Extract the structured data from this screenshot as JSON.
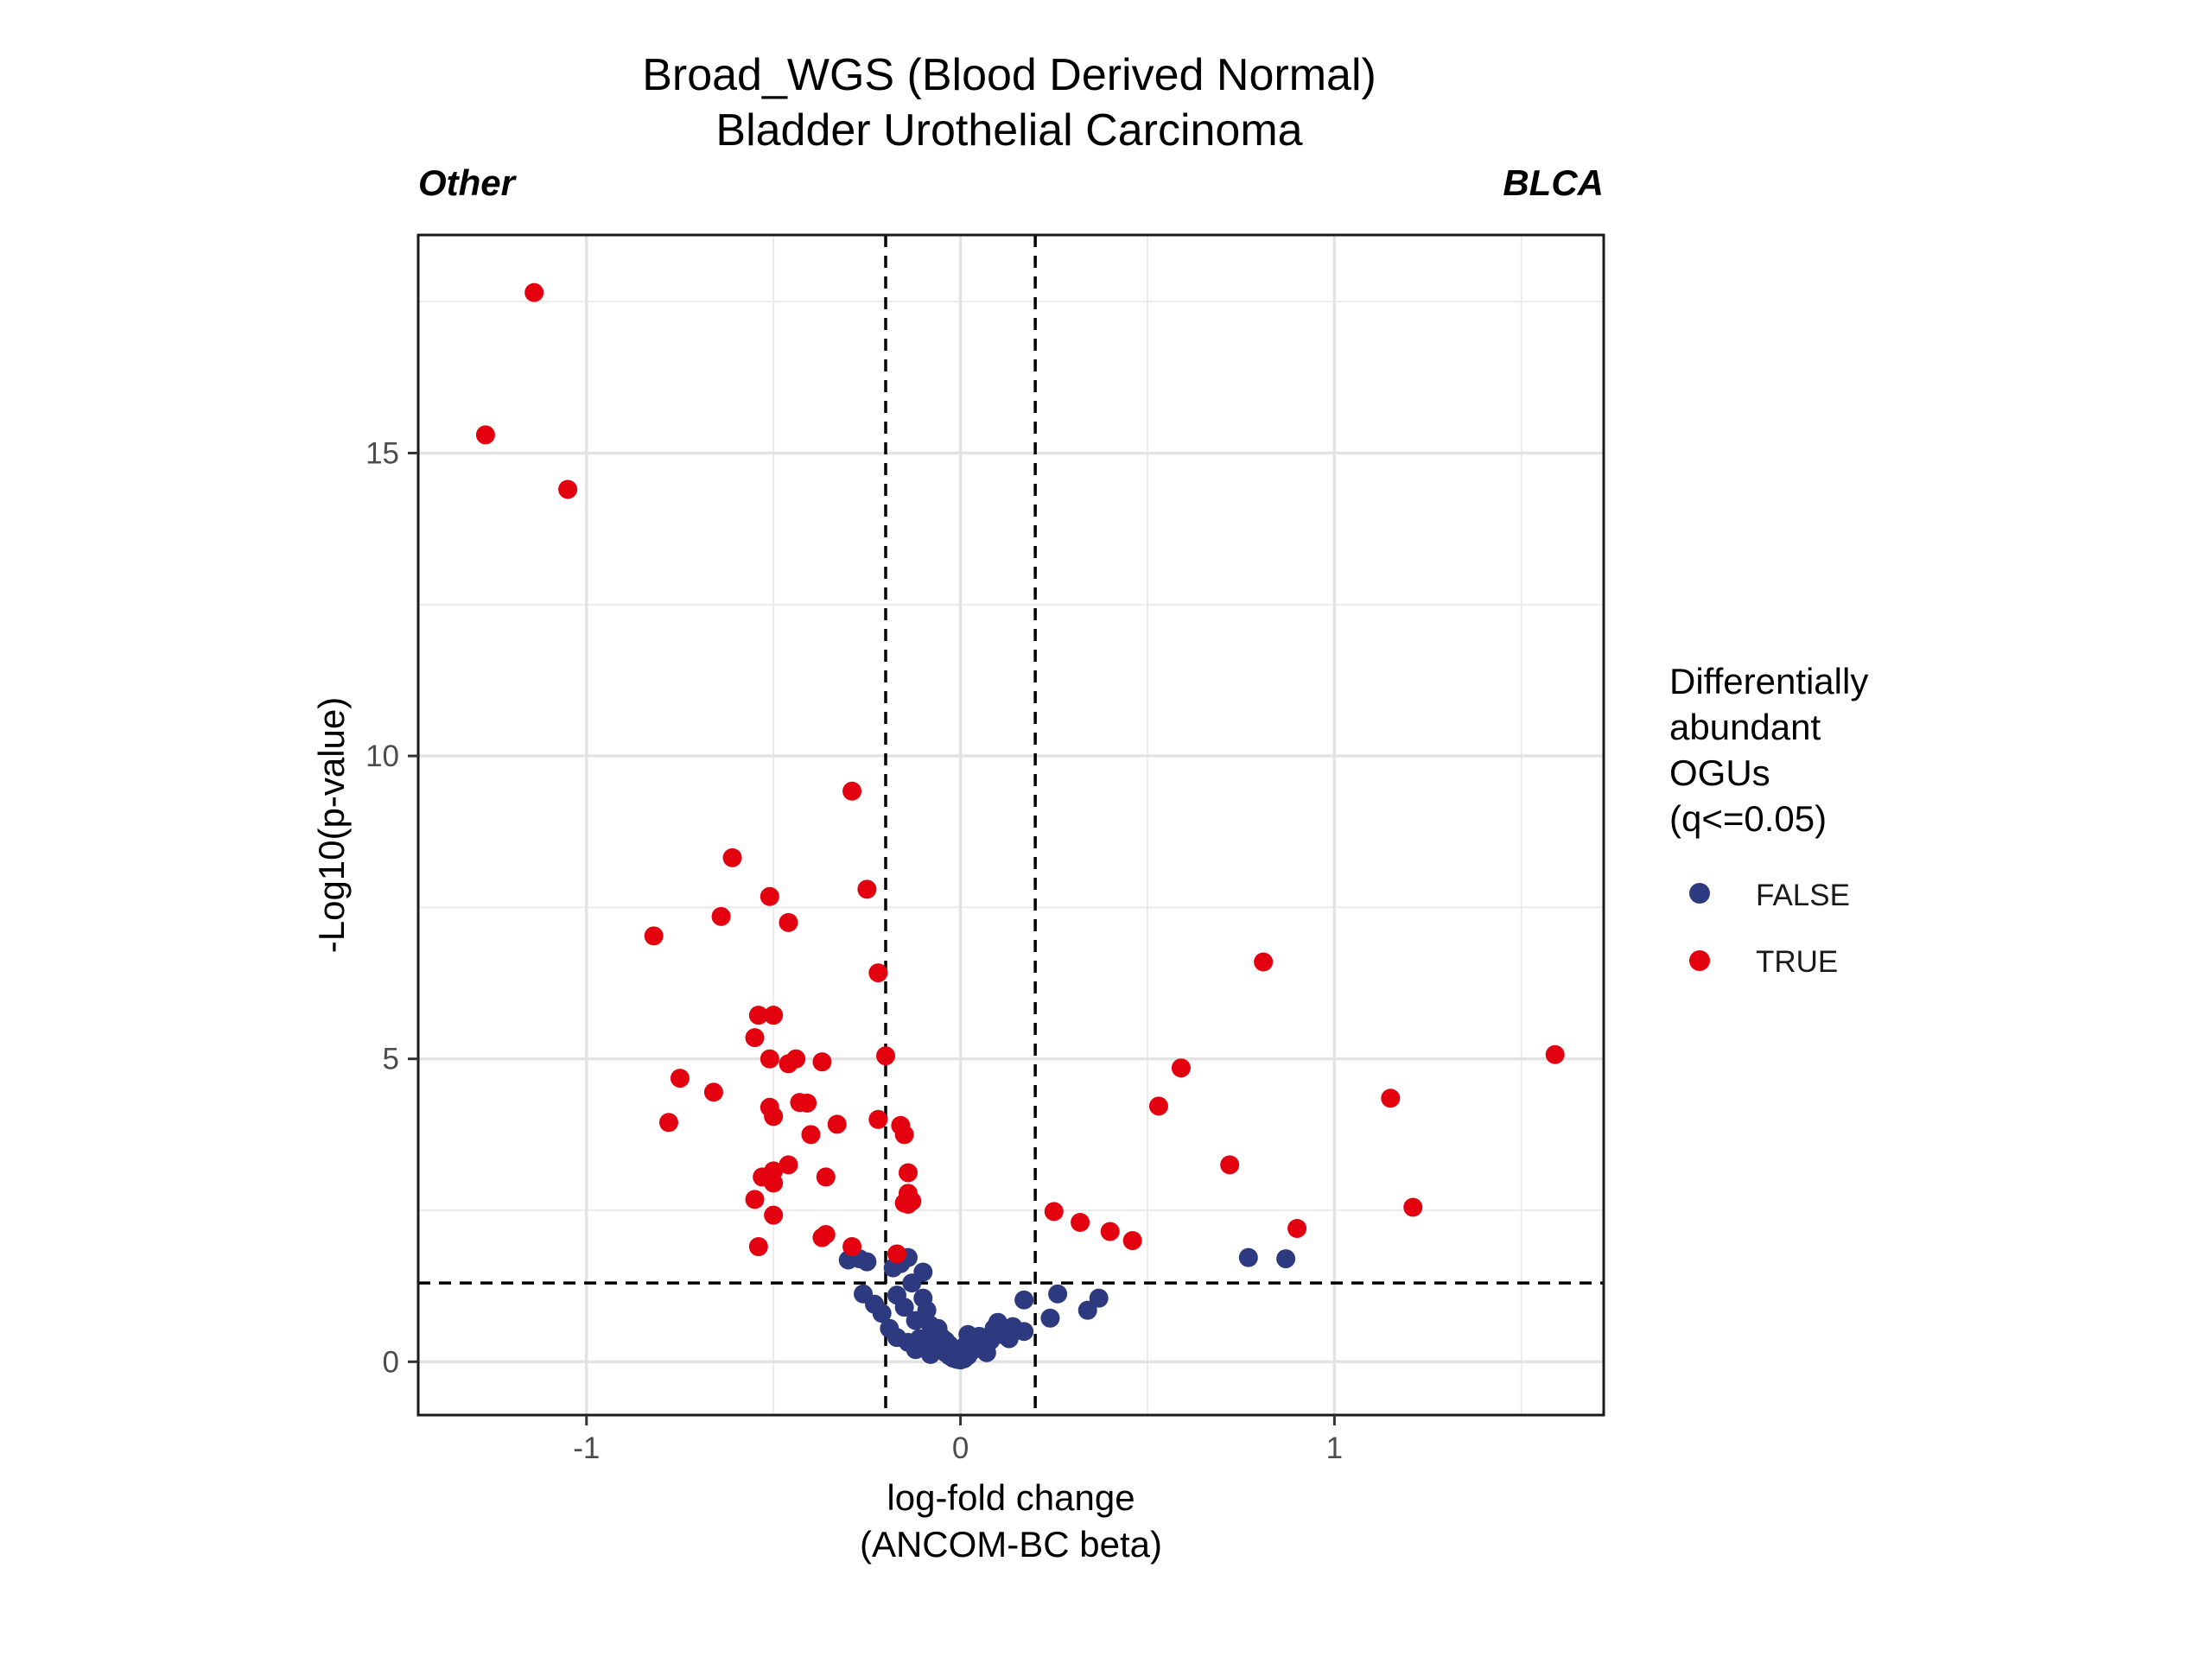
{
  "chart_data": {
    "type": "scatter",
    "title": "Broad_WGS (Blood Derived Normal)",
    "subtitle": "Bladder Urothelial Carcinoma",
    "left_group_label": "Other",
    "right_group_label": "BLCA",
    "xlabel_line1": "log-fold change",
    "xlabel_line2": "(ANCOM-BC beta)",
    "ylabel": "-Log10(p-value)",
    "xlim": [
      -1.45,
      1.72
    ],
    "ylim": [
      -0.88,
      18.6
    ],
    "x_ticks": [
      -1,
      0,
      1
    ],
    "x_tick_labels": [
      "-1",
      "0",
      "1"
    ],
    "y_ticks": [
      0,
      5,
      10,
      15
    ],
    "y_tick_labels": [
      "0",
      "5",
      "10",
      "15"
    ],
    "grid": true,
    "threshold_lines": {
      "x": [
        -0.2,
        0.2
      ],
      "y": 1.3
    },
    "legend": {
      "title_lines": [
        "Differentially",
        "abundant",
        "OGUs",
        "(q<=0.05)"
      ],
      "placement": "right",
      "entries": [
        {
          "label": "FALSE",
          "color": "#2e3a80"
        },
        {
          "label": "TRUE",
          "color": "#e3000f"
        }
      ]
    },
    "series": [
      {
        "name": "FALSE",
        "color": "#2e3a80",
        "points": [
          [
            -0.3,
            1.68
          ],
          [
            -0.27,
            1.7
          ],
          [
            -0.25,
            1.65
          ],
          [
            -0.26,
            1.12
          ],
          [
            -0.23,
            0.95
          ],
          [
            -0.21,
            0.8
          ],
          [
            -0.18,
            1.55
          ],
          [
            -0.16,
            1.62
          ],
          [
            -0.14,
            1.72
          ],
          [
            -0.1,
            1.48
          ],
          [
            -0.17,
            1.1
          ],
          [
            -0.15,
            0.9
          ],
          [
            -0.13,
            1.3
          ],
          [
            -0.19,
            0.55
          ],
          [
            -0.17,
            0.4
          ],
          [
            -0.14,
            0.32
          ],
          [
            -0.12,
            0.68
          ],
          [
            -0.1,
            1.05
          ],
          [
            -0.09,
            0.85
          ],
          [
            -0.08,
            0.6
          ],
          [
            -0.07,
            0.45
          ],
          [
            -0.06,
            0.3
          ],
          [
            -0.05,
            0.22
          ],
          [
            -0.04,
            0.15
          ],
          [
            -0.03,
            0.1
          ],
          [
            -0.02,
            0.06
          ],
          [
            -0.01,
            0.04
          ],
          [
            0.0,
            0.03
          ],
          [
            0.01,
            0.05
          ],
          [
            0.02,
            0.1
          ],
          [
            -0.09,
            0.25
          ],
          [
            -0.11,
            0.38
          ],
          [
            -0.08,
            0.12
          ],
          [
            -0.06,
            0.55
          ],
          [
            -0.05,
            0.4
          ],
          [
            -0.04,
            0.35
          ],
          [
            -0.03,
            0.28
          ],
          [
            -0.07,
            0.18
          ],
          [
            -0.12,
            0.2
          ],
          [
            0.03,
            0.18
          ],
          [
            0.04,
            0.3
          ],
          [
            0.05,
            0.42
          ],
          [
            0.06,
            0.25
          ],
          [
            0.07,
            0.15
          ],
          [
            0.08,
            0.35
          ],
          [
            0.09,
            0.55
          ],
          [
            0.1,
            0.65
          ],
          [
            0.11,
            0.45
          ],
          [
            0.13,
            0.38
          ],
          [
            0.14,
            0.58
          ],
          [
            0.17,
            0.5
          ],
          [
            0.17,
            1.02
          ],
          [
            0.24,
            0.72
          ],
          [
            0.26,
            1.12
          ],
          [
            0.34,
            0.85
          ],
          [
            0.37,
            1.05
          ],
          [
            0.77,
            1.72
          ],
          [
            0.87,
            1.7
          ],
          [
            0.02,
            0.45
          ],
          [
            0.01,
            0.25
          ]
        ]
      },
      {
        "name": "TRUE",
        "color": "#e3000f",
        "points": [
          [
            -1.14,
            17.65
          ],
          [
            -1.27,
            15.3
          ],
          [
            -1.05,
            14.4
          ],
          [
            -0.29,
            9.42
          ],
          [
            -0.61,
            8.32
          ],
          [
            -0.25,
            7.8
          ],
          [
            -0.51,
            7.68
          ],
          [
            -0.64,
            7.35
          ],
          [
            -0.46,
            7.25
          ],
          [
            -0.82,
            7.03
          ],
          [
            -0.22,
            6.42
          ],
          [
            -0.54,
            5.72
          ],
          [
            -0.5,
            5.72
          ],
          [
            -0.55,
            5.35
          ],
          [
            -0.2,
            5.05
          ],
          [
            -0.51,
            5.0
          ],
          [
            -0.46,
            4.92
          ],
          [
            -0.44,
            5.0
          ],
          [
            -0.37,
            4.95
          ],
          [
            -0.75,
            4.68
          ],
          [
            -0.66,
            4.45
          ],
          [
            -0.43,
            4.28
          ],
          [
            -0.41,
            4.27
          ],
          [
            -0.51,
            4.2
          ],
          [
            -0.5,
            4.05
          ],
          [
            -0.78,
            3.95
          ],
          [
            -0.22,
            4.0
          ],
          [
            -0.33,
            3.92
          ],
          [
            -0.16,
            3.9
          ],
          [
            -0.15,
            3.75
          ],
          [
            -0.4,
            3.75
          ],
          [
            -0.46,
            3.25
          ],
          [
            -0.5,
            3.15
          ],
          [
            -0.53,
            3.05
          ],
          [
            -0.5,
            2.95
          ],
          [
            -0.36,
            3.05
          ],
          [
            -0.14,
            3.12
          ],
          [
            -0.14,
            2.78
          ],
          [
            -0.14,
            2.6
          ],
          [
            -0.15,
            2.62
          ],
          [
            -0.13,
            2.65
          ],
          [
            -0.55,
            2.68
          ],
          [
            -0.5,
            2.42
          ],
          [
            -0.36,
            2.1
          ],
          [
            -0.37,
            2.05
          ],
          [
            -0.54,
            1.9
          ],
          [
            -0.29,
            1.9
          ],
          [
            -0.17,
            1.78
          ],
          [
            0.81,
            6.6
          ],
          [
            0.59,
            4.85
          ],
          [
            0.53,
            4.22
          ],
          [
            0.72,
            3.25
          ],
          [
            1.15,
            4.35
          ],
          [
            1.59,
            5.07
          ],
          [
            1.21,
            2.55
          ],
          [
            0.25,
            2.48
          ],
          [
            0.32,
            2.3
          ],
          [
            0.4,
            2.15
          ],
          [
            0.46,
            2.0
          ],
          [
            0.9,
            2.2
          ]
        ]
      }
    ]
  }
}
